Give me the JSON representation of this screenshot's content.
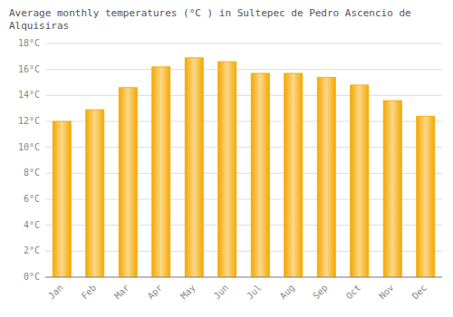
{
  "chart_data": {
    "type": "bar",
    "title": "Average monthly temperatures (°C ) in Sultepec de Pedro Ascencio de Alquisiras",
    "categories": [
      "Jan",
      "Feb",
      "Mar",
      "Apr",
      "May",
      "Jun",
      "Jul",
      "Aug",
      "Sep",
      "Oct",
      "Nov",
      "Dec"
    ],
    "values": [
      12.0,
      12.9,
      14.6,
      16.2,
      16.9,
      16.6,
      15.7,
      15.7,
      15.4,
      14.8,
      13.6,
      12.4
    ],
    "color": "#F5A800",
    "ylim": [
      0,
      18
    ],
    "yticks": [
      {
        "value": 0,
        "label": "0°C"
      },
      {
        "value": 2,
        "label": "2°C"
      },
      {
        "value": 4,
        "label": "4°C"
      },
      {
        "value": 6,
        "label": "6°C"
      },
      {
        "value": 8,
        "label": "8°C"
      },
      {
        "value": 10,
        "label": "10°C"
      },
      {
        "value": 12,
        "label": "12°C"
      },
      {
        "value": 14,
        "label": "14°C"
      },
      {
        "value": 16,
        "label": "16°C"
      },
      {
        "value": 18,
        "label": "18°C"
      }
    ],
    "grid": true
  }
}
